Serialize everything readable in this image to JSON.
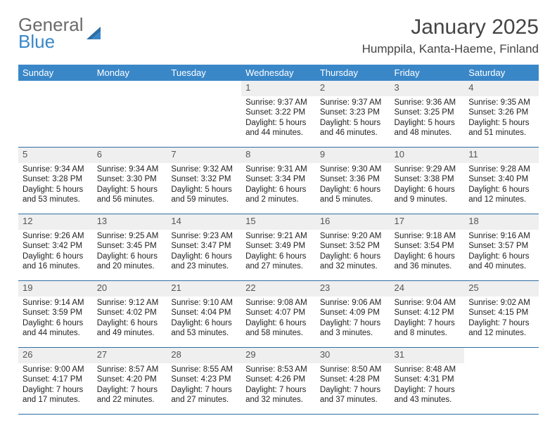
{
  "logo": {
    "line1": "General",
    "line2": "Blue"
  },
  "title": "January 2025",
  "location": "Humppila, Kanta-Haeme, Finland",
  "colors": {
    "header_bg": "#3a87c8",
    "header_text": "#ffffff",
    "daynum_bg": "#efefef",
    "row_divider": "#2e6da4",
    "logo_gray": "#6b6b6b",
    "logo_blue": "#3a87c8"
  },
  "weekdays": [
    "Sunday",
    "Monday",
    "Tuesday",
    "Wednesday",
    "Thursday",
    "Friday",
    "Saturday"
  ],
  "weeks": [
    {
      "nums": [
        "",
        "",
        "",
        "1",
        "2",
        "3",
        "4"
      ],
      "cells": [
        null,
        null,
        null,
        {
          "sunrise": "Sunrise: 9:37 AM",
          "sunset": "Sunset: 3:22 PM",
          "day1": "Daylight: 5 hours",
          "day2": "and 44 minutes."
        },
        {
          "sunrise": "Sunrise: 9:37 AM",
          "sunset": "Sunset: 3:23 PM",
          "day1": "Daylight: 5 hours",
          "day2": "and 46 minutes."
        },
        {
          "sunrise": "Sunrise: 9:36 AM",
          "sunset": "Sunset: 3:25 PM",
          "day1": "Daylight: 5 hours",
          "day2": "and 48 minutes."
        },
        {
          "sunrise": "Sunrise: 9:35 AM",
          "sunset": "Sunset: 3:26 PM",
          "day1": "Daylight: 5 hours",
          "day2": "and 51 minutes."
        }
      ]
    },
    {
      "nums": [
        "5",
        "6",
        "7",
        "8",
        "9",
        "10",
        "11"
      ],
      "cells": [
        {
          "sunrise": "Sunrise: 9:34 AM",
          "sunset": "Sunset: 3:28 PM",
          "day1": "Daylight: 5 hours",
          "day2": "and 53 minutes."
        },
        {
          "sunrise": "Sunrise: 9:34 AM",
          "sunset": "Sunset: 3:30 PM",
          "day1": "Daylight: 5 hours",
          "day2": "and 56 minutes."
        },
        {
          "sunrise": "Sunrise: 9:32 AM",
          "sunset": "Sunset: 3:32 PM",
          "day1": "Daylight: 5 hours",
          "day2": "and 59 minutes."
        },
        {
          "sunrise": "Sunrise: 9:31 AM",
          "sunset": "Sunset: 3:34 PM",
          "day1": "Daylight: 6 hours",
          "day2": "and 2 minutes."
        },
        {
          "sunrise": "Sunrise: 9:30 AM",
          "sunset": "Sunset: 3:36 PM",
          "day1": "Daylight: 6 hours",
          "day2": "and 5 minutes."
        },
        {
          "sunrise": "Sunrise: 9:29 AM",
          "sunset": "Sunset: 3:38 PM",
          "day1": "Daylight: 6 hours",
          "day2": "and 9 minutes."
        },
        {
          "sunrise": "Sunrise: 9:28 AM",
          "sunset": "Sunset: 3:40 PM",
          "day1": "Daylight: 6 hours",
          "day2": "and 12 minutes."
        }
      ]
    },
    {
      "nums": [
        "12",
        "13",
        "14",
        "15",
        "16",
        "17",
        "18"
      ],
      "cells": [
        {
          "sunrise": "Sunrise: 9:26 AM",
          "sunset": "Sunset: 3:42 PM",
          "day1": "Daylight: 6 hours",
          "day2": "and 16 minutes."
        },
        {
          "sunrise": "Sunrise: 9:25 AM",
          "sunset": "Sunset: 3:45 PM",
          "day1": "Daylight: 6 hours",
          "day2": "and 20 minutes."
        },
        {
          "sunrise": "Sunrise: 9:23 AM",
          "sunset": "Sunset: 3:47 PM",
          "day1": "Daylight: 6 hours",
          "day2": "and 23 minutes."
        },
        {
          "sunrise": "Sunrise: 9:21 AM",
          "sunset": "Sunset: 3:49 PM",
          "day1": "Daylight: 6 hours",
          "day2": "and 27 minutes."
        },
        {
          "sunrise": "Sunrise: 9:20 AM",
          "sunset": "Sunset: 3:52 PM",
          "day1": "Daylight: 6 hours",
          "day2": "and 32 minutes."
        },
        {
          "sunrise": "Sunrise: 9:18 AM",
          "sunset": "Sunset: 3:54 PM",
          "day1": "Daylight: 6 hours",
          "day2": "and 36 minutes."
        },
        {
          "sunrise": "Sunrise: 9:16 AM",
          "sunset": "Sunset: 3:57 PM",
          "day1": "Daylight: 6 hours",
          "day2": "and 40 minutes."
        }
      ]
    },
    {
      "nums": [
        "19",
        "20",
        "21",
        "22",
        "23",
        "24",
        "25"
      ],
      "cells": [
        {
          "sunrise": "Sunrise: 9:14 AM",
          "sunset": "Sunset: 3:59 PM",
          "day1": "Daylight: 6 hours",
          "day2": "and 44 minutes."
        },
        {
          "sunrise": "Sunrise: 9:12 AM",
          "sunset": "Sunset: 4:02 PM",
          "day1": "Daylight: 6 hours",
          "day2": "and 49 minutes."
        },
        {
          "sunrise": "Sunrise: 9:10 AM",
          "sunset": "Sunset: 4:04 PM",
          "day1": "Daylight: 6 hours",
          "day2": "and 53 minutes."
        },
        {
          "sunrise": "Sunrise: 9:08 AM",
          "sunset": "Sunset: 4:07 PM",
          "day1": "Daylight: 6 hours",
          "day2": "and 58 minutes."
        },
        {
          "sunrise": "Sunrise: 9:06 AM",
          "sunset": "Sunset: 4:09 PM",
          "day1": "Daylight: 7 hours",
          "day2": "and 3 minutes."
        },
        {
          "sunrise": "Sunrise: 9:04 AM",
          "sunset": "Sunset: 4:12 PM",
          "day1": "Daylight: 7 hours",
          "day2": "and 8 minutes."
        },
        {
          "sunrise": "Sunrise: 9:02 AM",
          "sunset": "Sunset: 4:15 PM",
          "day1": "Daylight: 7 hours",
          "day2": "and 12 minutes."
        }
      ]
    },
    {
      "nums": [
        "26",
        "27",
        "28",
        "29",
        "30",
        "31",
        ""
      ],
      "cells": [
        {
          "sunrise": "Sunrise: 9:00 AM",
          "sunset": "Sunset: 4:17 PM",
          "day1": "Daylight: 7 hours",
          "day2": "and 17 minutes."
        },
        {
          "sunrise": "Sunrise: 8:57 AM",
          "sunset": "Sunset: 4:20 PM",
          "day1": "Daylight: 7 hours",
          "day2": "and 22 minutes."
        },
        {
          "sunrise": "Sunrise: 8:55 AM",
          "sunset": "Sunset: 4:23 PM",
          "day1": "Daylight: 7 hours",
          "day2": "and 27 minutes."
        },
        {
          "sunrise": "Sunrise: 8:53 AM",
          "sunset": "Sunset: 4:26 PM",
          "day1": "Daylight: 7 hours",
          "day2": "and 32 minutes."
        },
        {
          "sunrise": "Sunrise: 8:50 AM",
          "sunset": "Sunset: 4:28 PM",
          "day1": "Daylight: 7 hours",
          "day2": "and 37 minutes."
        },
        {
          "sunrise": "Sunrise: 8:48 AM",
          "sunset": "Sunset: 4:31 PM",
          "day1": "Daylight: 7 hours",
          "day2": "and 43 minutes."
        },
        null
      ]
    }
  ]
}
